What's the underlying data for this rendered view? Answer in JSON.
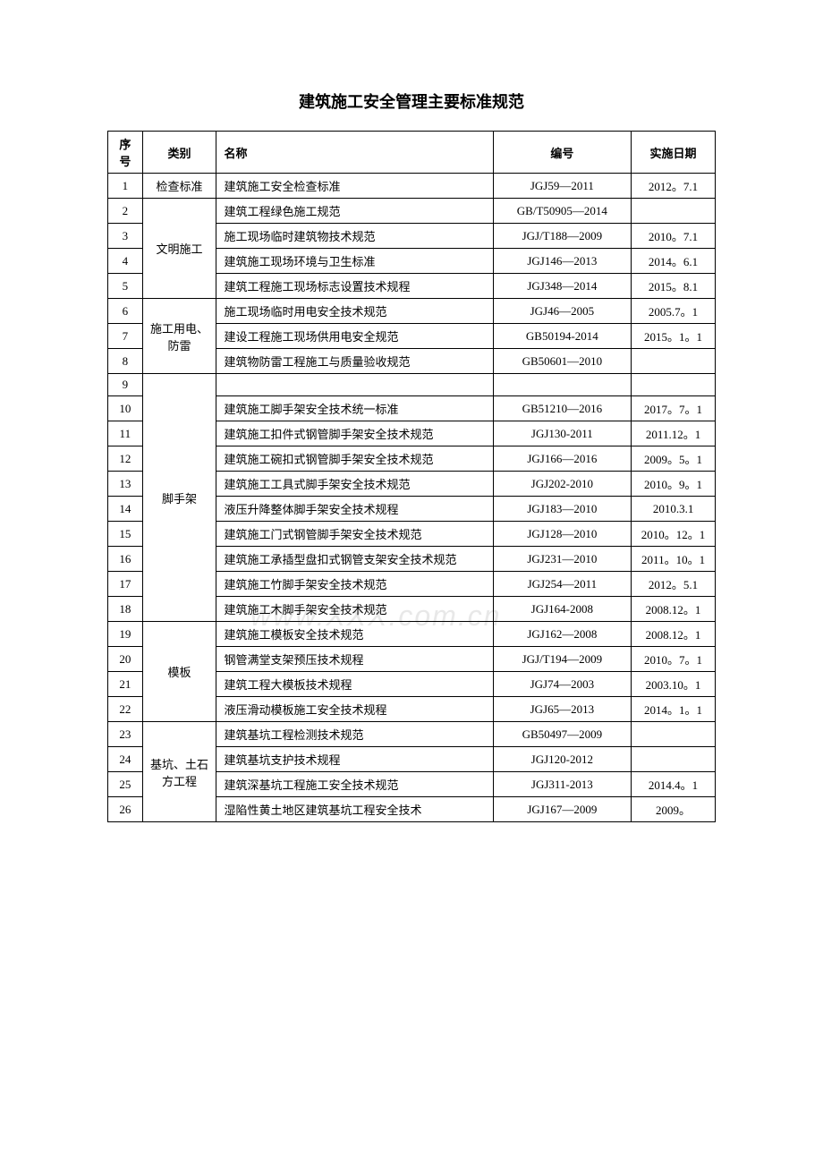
{
  "title": "建筑施工安全管理主要标准规范",
  "watermark": "www.XXX.com.cn",
  "headers": {
    "seq": "序号",
    "cat": "类别",
    "name": "名称",
    "code": "编号",
    "date": "实施日期"
  },
  "categories": [
    {
      "label": "检查标准",
      "rowspan": 1
    },
    {
      "label": "文明施工",
      "rowspan": 4
    },
    {
      "label": "施工用电、防雷",
      "rowspan": 3
    },
    {
      "label": "脚手架",
      "rowspan": 10
    },
    {
      "label": "模板",
      "rowspan": 4
    },
    {
      "label": "基坑、土石方工程",
      "rowspan": 4
    }
  ],
  "rows": [
    {
      "seq": "1",
      "catIdx": 0,
      "name": "建筑施工安全检查标准",
      "code": "JGJ59—2011",
      "date": "2012。7.1"
    },
    {
      "seq": "2",
      "catIdx": 1,
      "name": "建筑工程绿色施工规范",
      "code": "GB/T50905—2014",
      "date": ""
    },
    {
      "seq": "3",
      "catIdx": null,
      "name": "施工现场临时建筑物技术规范",
      "code": "JGJ/T188—2009",
      "date": "2010。7.1"
    },
    {
      "seq": "4",
      "catIdx": null,
      "name": "建筑施工现场环境与卫生标准",
      "code": "JGJ146—2013",
      "date": "2014。6.1"
    },
    {
      "seq": "5",
      "catIdx": null,
      "name": "建筑工程施工现场标志设置技术规程",
      "code": "JGJ348—2014",
      "date": "2015。8.1"
    },
    {
      "seq": "6",
      "catIdx": 2,
      "name": "施工现场临时用电安全技术规范",
      "code": "JGJ46—2005",
      "date": "2005.7。1"
    },
    {
      "seq": "7",
      "catIdx": null,
      "name": "建设工程施工现场供用电安全规范",
      "code": "GB50194-2014",
      "date": "2015。1。1"
    },
    {
      "seq": "8",
      "catIdx": null,
      "name": "建筑物防雷工程施工与质量验收规范",
      "code": "GB50601—2010",
      "date": ""
    },
    {
      "seq": "9",
      "catIdx": 3,
      "name": "",
      "code": "",
      "date": ""
    },
    {
      "seq": "10",
      "catIdx": null,
      "name": "建筑施工脚手架安全技术统一标准",
      "code": "GB51210—2016",
      "date": "2017。7。1"
    },
    {
      "seq": "11",
      "catIdx": null,
      "name": "建筑施工扣件式钢管脚手架安全技术规范",
      "code": "JGJ130-2011",
      "date": "2011.12。1"
    },
    {
      "seq": "12",
      "catIdx": null,
      "name": "建筑施工碗扣式钢管脚手架安全技术规范",
      "code": "JGJ166—2016",
      "date": "2009。5。1"
    },
    {
      "seq": "13",
      "catIdx": null,
      "name": "建筑施工工具式脚手架安全技术规范",
      "code": "JGJ202-2010",
      "date": "2010。9。1"
    },
    {
      "seq": "14",
      "catIdx": null,
      "name": "液压升降整体脚手架安全技术规程",
      "code": "JGJ183—2010",
      "date": "2010.3.1"
    },
    {
      "seq": "15",
      "catIdx": null,
      "name": "建筑施工门式钢管脚手架安全技术规范",
      "code": "JGJ128—2010",
      "date": "2010。12。1"
    },
    {
      "seq": "16",
      "catIdx": null,
      "name": "建筑施工承插型盘扣式钢管支架安全技术规范",
      "code": "JGJ231—2010",
      "date": "2011。10。1"
    },
    {
      "seq": "17",
      "catIdx": null,
      "name": "建筑施工竹脚手架安全技术规范",
      "code": "JGJ254—2011",
      "date": "2012。5.1"
    },
    {
      "seq": "18",
      "catIdx": null,
      "name": "建筑施工木脚手架安全技术规范",
      "code": "JGJ164-2008",
      "date": "2008.12。1"
    },
    {
      "seq": "19",
      "catIdx": 4,
      "name": "建筑施工模板安全技术规范",
      "code": "JGJ162—2008",
      "date": "2008.12。1"
    },
    {
      "seq": "20",
      "catIdx": null,
      "name": "钢管满堂支架预压技术规程",
      "code": "JGJ/T194—2009",
      "date": "2010。7。1"
    },
    {
      "seq": "21",
      "catIdx": null,
      "name": "建筑工程大模板技术规程",
      "code": "JGJ74—2003",
      "date": "2003.10。1"
    },
    {
      "seq": "22",
      "catIdx": null,
      "name": "液压滑动模板施工安全技术规程",
      "code": "JGJ65—2013",
      "date": "2014。1。1"
    },
    {
      "seq": "23",
      "catIdx": 5,
      "name": "建筑基坑工程检测技术规范",
      "code": "GB50497—2009",
      "date": ""
    },
    {
      "seq": "24",
      "catIdx": null,
      "name": "建筑基坑支护技术规程",
      "code": "JGJ120-2012",
      "date": ""
    },
    {
      "seq": "25",
      "catIdx": null,
      "name": "建筑深基坑工程施工安全技术规范",
      "code": "JGJ311-2013",
      "date": "2014.4。1"
    },
    {
      "seq": "26",
      "catIdx": null,
      "name": "湿陷性黄土地区建筑基坑工程安全技术",
      "code": "JGJ167—2009",
      "date": "2009。"
    }
  ]
}
